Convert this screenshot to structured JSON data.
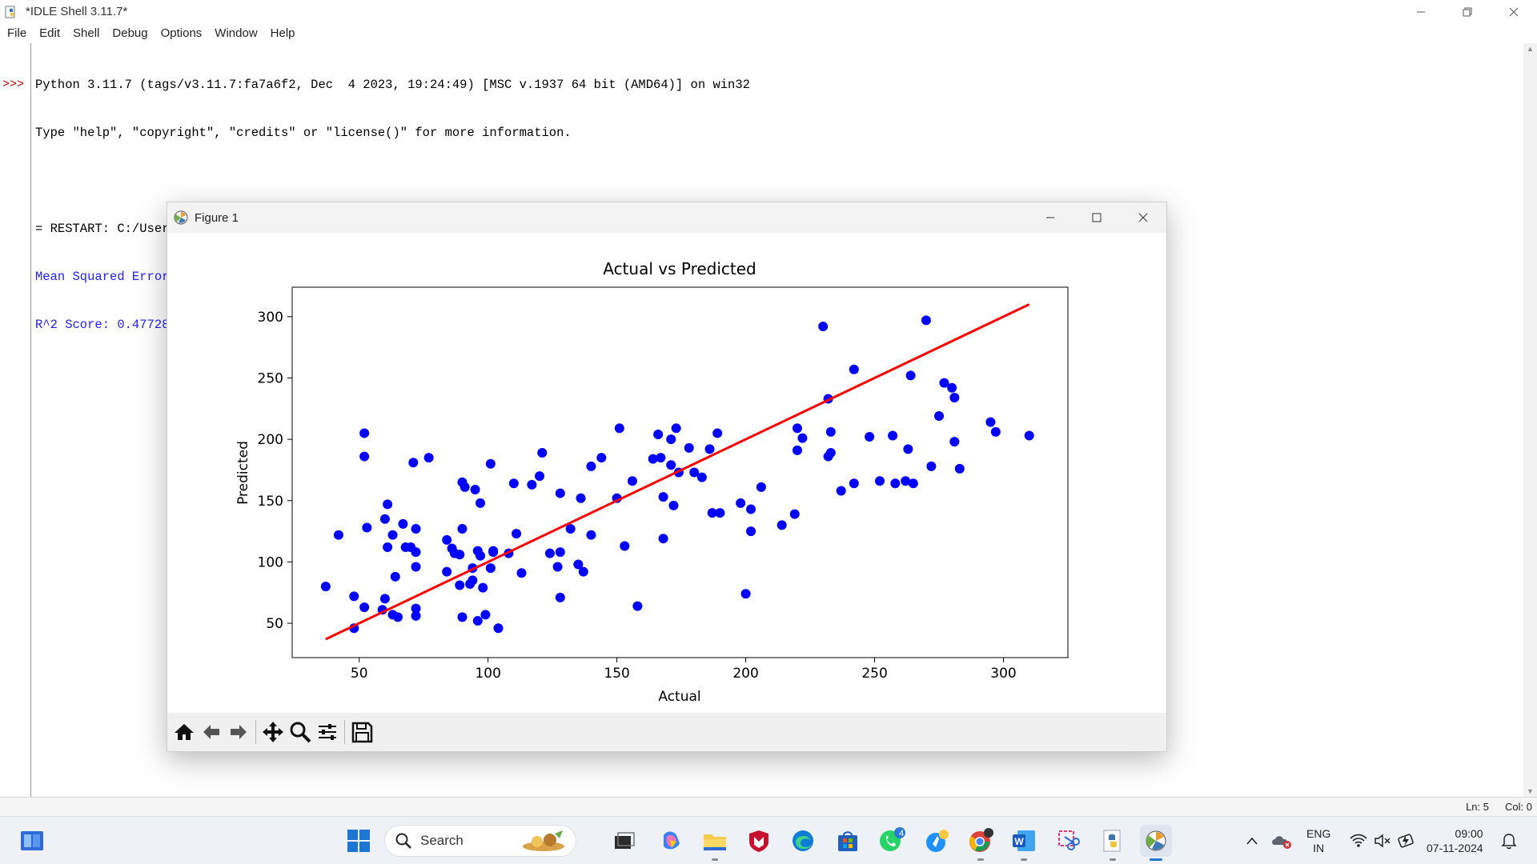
{
  "window": {
    "title": "*IDLE Shell 3.11.7*"
  },
  "menu": [
    "File",
    "Edit",
    "Shell",
    "Debug",
    "Options",
    "Window",
    "Help"
  ],
  "shell": {
    "prompt": ">>>",
    "lines": [
      {
        "text": "Python 3.11.7 (tags/v3.11.7:fa7a6f2, Dec  4 2023, 19:24:49) [MSC v.1937 64 bit (AMD64)] on win32",
        "style": "normal"
      },
      {
        "text": "Type \"help\", \"copyright\", \"credits\" or \"license()\" for more information.",
        "style": "normal"
      },
      {
        "text": "",
        "style": "normal"
      },
      {
        "text": "= RESTART: C:/Users/gopie/Documents/MACHINE LEARNING/exp 8(Linear Regression).py",
        "style": "normal"
      },
      {
        "text": "Mean Squared Error: 2821.7509810013107",
        "style": "blue"
      },
      {
        "text": "R^2 Score: 0.4772897164322617",
        "style": "blue"
      }
    ]
  },
  "status": {
    "ln": "Ln: 5",
    "col": "Col: 0"
  },
  "figure": {
    "title": "Figure 1"
  },
  "chart_data": {
    "type": "scatter",
    "title": "Actual vs Predicted",
    "xlabel": "Actual",
    "ylabel": "Predicted",
    "xlim": [
      24,
      325
    ],
    "ylim": [
      22,
      324
    ],
    "xticks": [
      50,
      100,
      150,
      200,
      250,
      300
    ],
    "yticks": [
      50,
      100,
      150,
      200,
      250,
      300
    ],
    "point_color": "#0000ff",
    "line_color": "#ff0000",
    "grid": false,
    "fit_line": {
      "x": [
        37,
        310
      ],
      "y": [
        37,
        310
      ]
    },
    "points": [
      [
        37,
        80
      ],
      [
        42,
        122
      ],
      [
        48,
        72
      ],
      [
        48,
        46
      ],
      [
        52,
        205
      ],
      [
        52,
        186
      ],
      [
        52,
        63
      ],
      [
        53,
        128
      ],
      [
        59,
        61
      ],
      [
        60,
        70
      ],
      [
        60,
        135
      ],
      [
        61,
        112
      ],
      [
        61,
        147
      ],
      [
        63,
        122
      ],
      [
        63,
        57
      ],
      [
        64,
        88
      ],
      [
        65,
        55
      ],
      [
        67,
        131
      ],
      [
        68,
        112
      ],
      [
        70,
        112
      ],
      [
        71,
        181
      ],
      [
        72,
        127
      ],
      [
        72,
        108
      ],
      [
        72,
        96
      ],
      [
        72,
        62
      ],
      [
        72,
        56
      ],
      [
        77,
        185
      ],
      [
        84,
        118
      ],
      [
        84,
        92
      ],
      [
        86,
        111
      ],
      [
        87,
        107
      ],
      [
        89,
        81
      ],
      [
        89,
        106
      ],
      [
        90,
        165
      ],
      [
        90,
        127
      ],
      [
        90,
        55
      ],
      [
        91,
        161
      ],
      [
        93,
        82
      ],
      [
        94,
        85
      ],
      [
        94,
        95
      ],
      [
        95,
        159
      ],
      [
        96,
        52
      ],
      [
        96,
        109
      ],
      [
        97,
        148
      ],
      [
        97,
        105
      ],
      [
        98,
        79
      ],
      [
        99,
        57
      ],
      [
        101,
        180
      ],
      [
        101,
        95
      ],
      [
        102,
        108
      ],
      [
        102,
        109
      ],
      [
        104,
        46
      ],
      [
        108,
        107
      ],
      [
        110,
        164
      ],
      [
        111,
        123
      ],
      [
        113,
        91
      ],
      [
        117,
        163
      ],
      [
        120,
        170
      ],
      [
        121,
        189
      ],
      [
        124,
        107
      ],
      [
        127,
        96
      ],
      [
        128,
        71
      ],
      [
        128,
        108
      ],
      [
        128,
        156
      ],
      [
        132,
        127
      ],
      [
        135,
        98
      ],
      [
        136,
        152
      ],
      [
        137,
        92
      ],
      [
        140,
        122
      ],
      [
        140,
        178
      ],
      [
        144,
        185
      ],
      [
        150,
        152
      ],
      [
        151,
        209
      ],
      [
        153,
        113
      ],
      [
        156,
        166
      ],
      [
        158,
        64
      ],
      [
        164,
        184
      ],
      [
        166,
        204
      ],
      [
        167,
        185
      ],
      [
        168,
        119
      ],
      [
        168,
        153
      ],
      [
        171,
        200
      ],
      [
        171,
        179
      ],
      [
        172,
        146
      ],
      [
        173,
        209
      ],
      [
        174,
        173
      ],
      [
        178,
        193
      ],
      [
        180,
        173
      ],
      [
        183,
        169
      ],
      [
        186,
        192
      ],
      [
        187,
        140
      ],
      [
        189,
        205
      ],
      [
        190,
        140
      ],
      [
        198,
        148
      ],
      [
        200,
        74
      ],
      [
        202,
        125
      ],
      [
        202,
        143
      ],
      [
        206,
        161
      ],
      [
        214,
        130
      ],
      [
        219,
        139
      ],
      [
        220,
        209
      ],
      [
        220,
        191
      ],
      [
        222,
        201
      ],
      [
        230,
        292
      ],
      [
        232,
        233
      ],
      [
        232,
        186
      ],
      [
        233,
        189
      ],
      [
        233,
        206
      ],
      [
        237,
        158
      ],
      [
        242,
        164
      ],
      [
        242,
        257
      ],
      [
        248,
        202
      ],
      [
        252,
        166
      ],
      [
        257,
        203
      ],
      [
        258,
        164
      ],
      [
        262,
        166
      ],
      [
        263,
        192
      ],
      [
        264,
        252
      ],
      [
        265,
        164
      ],
      [
        270,
        297
      ],
      [
        272,
        178
      ],
      [
        275,
        219
      ],
      [
        277,
        246
      ],
      [
        280,
        242
      ],
      [
        281,
        234
      ],
      [
        281,
        198
      ],
      [
        283,
        176
      ],
      [
        295,
        214
      ],
      [
        297,
        206
      ],
      [
        310,
        203
      ]
    ]
  },
  "taskbar": {
    "search_label": "Search",
    "whatsapp_badge": "4"
  },
  "tray": {
    "lang": "ENG",
    "region": "IN",
    "time": "09:00",
    "date": "07-11-2024"
  }
}
